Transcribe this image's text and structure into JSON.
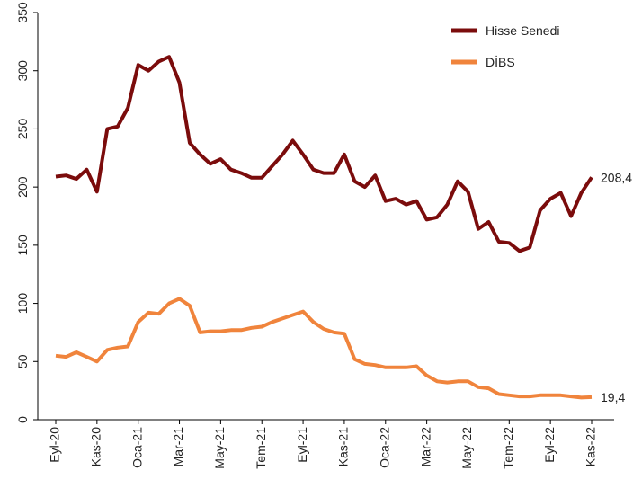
{
  "chart_data": {
    "type": "line",
    "categories": [
      "Eyl-20",
      null,
      null,
      null,
      "Kas-20",
      null,
      null,
      null,
      "Oca-21",
      null,
      null,
      null,
      "Mar-21",
      null,
      null,
      null,
      "May-21",
      null,
      null,
      null,
      "Tem-21",
      null,
      null,
      null,
      "Eyl-21",
      null,
      null,
      null,
      "Kas-21",
      null,
      null,
      null,
      "Oca-22",
      null,
      null,
      null,
      "Mar-22",
      null,
      null,
      null,
      "May-22",
      null,
      null,
      null,
      "Tem-22",
      null,
      null,
      null,
      "Eyl-22",
      null,
      null,
      null,
      "Kas-22"
    ],
    "series": [
      {
        "name": "Hisse Senedi",
        "color": "#7b0c0c",
        "end_label": "208,4",
        "values": [
          209,
          210,
          207,
          215,
          196,
          250,
          252,
          268,
          305,
          300,
          308,
          312,
          290,
          238,
          228,
          220,
          224,
          215,
          212,
          208,
          208,
          218,
          228,
          240,
          228,
          215,
          212,
          212,
          228,
          205,
          200,
          210,
          188,
          190,
          185,
          188,
          172,
          174,
          185,
          205,
          196,
          164,
          170,
          153,
          152,
          145,
          148,
          180,
          190,
          195,
          175,
          195,
          208.4
        ]
      },
      {
        "name": "DİBS",
        "color": "#f0843c",
        "end_label": "19,4",
        "values": [
          55,
          54,
          58,
          54,
          50,
          60,
          62,
          63,
          84,
          92,
          91,
          100,
          104,
          98,
          75,
          76,
          76,
          77,
          77,
          79,
          80,
          84,
          87,
          90,
          93,
          84,
          78,
          75,
          74,
          52,
          48,
          47,
          45,
          45,
          45,
          46,
          38,
          33,
          32,
          33,
          33,
          28,
          27,
          22,
          21,
          20,
          20,
          21,
          21,
          21,
          20,
          19,
          19.4
        ]
      }
    ],
    "ylim": [
      0,
      350
    ],
    "yticks": [
      0,
      50,
      100,
      150,
      200,
      250,
      300,
      350
    ],
    "grid": false,
    "legend": "top-right"
  }
}
